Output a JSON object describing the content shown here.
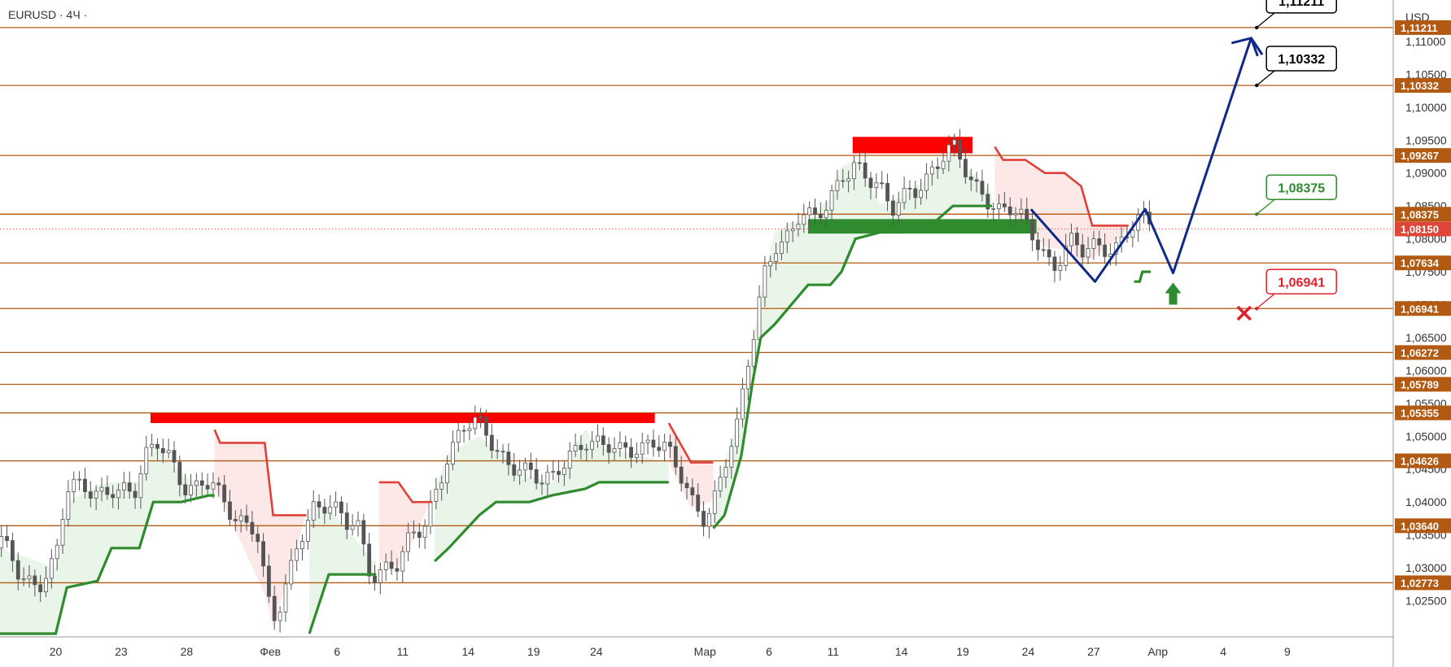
{
  "header": {
    "symbol": "EURUSD · 4Ч ·",
    "currency": "USD"
  },
  "colors": {
    "level": "#b35a12",
    "level_tag": "#b35a12",
    "current_tag": "#e0453a",
    "bull": "#2e8b2e",
    "bear": "#e0403a",
    "resistance": "#ff0000",
    "support_zone": "#2e8b2e",
    "forecast": "#0d2a8a",
    "candle": "#555555",
    "up_fill": "#e9f5e9",
    "down_fill": "#fde8e8"
  },
  "chart_data": {
    "type": "candlestick",
    "y_range": [
      1.0195,
      1.1163
    ],
    "x_range": [
      0,
      1000
    ],
    "y_ticks": [
      "1,11000",
      "1,10500",
      "1,10000",
      "1,09500",
      "1,09000",
      "1,08500",
      "1,08000",
      "1,07500",
      "1,07000",
      "1,06500",
      "1,06000",
      "1,05500",
      "1,05000",
      "1,04500",
      "1,04000",
      "1,03500",
      "1,03000",
      "1,02500"
    ],
    "y_tick_values": [
      1.11,
      1.105,
      1.1,
      1.095,
      1.09,
      1.085,
      1.08,
      1.075,
      1.07,
      1.065,
      1.06,
      1.055,
      1.05,
      1.045,
      1.04,
      1.035,
      1.03,
      1.025
    ],
    "x_ticks": [
      {
        "label": "20",
        "x": 40
      },
      {
        "label": "23",
        "x": 87
      },
      {
        "label": "28",
        "x": 134
      },
      {
        "label": "Фев",
        "x": 194
      },
      {
        "label": "6",
        "x": 242
      },
      {
        "label": "11",
        "x": 289
      },
      {
        "label": "14",
        "x": 336
      },
      {
        "label": "19",
        "x": 383
      },
      {
        "label": "24",
        "x": 428
      },
      {
        "label": "Мар",
        "x": 506
      },
      {
        "label": "6",
        "x": 552
      },
      {
        "label": "11",
        "x": 598
      },
      {
        "label": "14",
        "x": 647
      },
      {
        "label": "19",
        "x": 691
      },
      {
        "label": "24",
        "x": 738
      },
      {
        "label": "27",
        "x": 785
      },
      {
        "label": "Апр",
        "x": 831
      },
      {
        "label": "4",
        "x": 878
      },
      {
        "label": "9",
        "x": 924
      }
    ],
    "levels": [
      {
        "value": 1.11211,
        "label": "1,11211"
      },
      {
        "value": 1.10332,
        "label": "1,10332"
      },
      {
        "value": 1.09267,
        "label": "1,09267"
      },
      {
        "value": 1.08375,
        "label": "1,08375"
      },
      {
        "value": 1.07634,
        "label": "1,07634"
      },
      {
        "value": 1.06941,
        "label": "1,06941"
      },
      {
        "value": 1.06272,
        "label": "1,06272"
      },
      {
        "value": 1.05789,
        "label": "1,05789"
      },
      {
        "value": 1.05355,
        "label": "1,05355"
      },
      {
        "value": 1.04626,
        "label": "1,04626"
      },
      {
        "value": 1.0364,
        "label": "1,03640"
      },
      {
        "value": 1.02773,
        "label": "1,02773"
      }
    ],
    "current_price": {
      "value": 1.0815,
      "label": "1,08150"
    },
    "price_path": [
      [
        0,
        1.033
      ],
      [
        14,
        1.029
      ],
      [
        28,
        1.028
      ],
      [
        40,
        1.03
      ],
      [
        48,
        1.04
      ],
      [
        62,
        1.042
      ],
      [
        80,
        1.043
      ],
      [
        96,
        1.04
      ],
      [
        105,
        1.047
      ],
      [
        114,
        1.051
      ],
      [
        122,
        1.049
      ],
      [
        132,
        1.043
      ],
      [
        140,
        1.041
      ],
      [
        152,
        1.042
      ],
      [
        162,
        1.04
      ],
      [
        172,
        1.038
      ],
      [
        184,
        1.035
      ],
      [
        192,
        1.023
      ],
      [
        198,
        1.02
      ],
      [
        206,
        1.027
      ],
      [
        214,
        1.035
      ],
      [
        224,
        1.04
      ],
      [
        236,
        1.039
      ],
      [
        248,
        1.036
      ],
      [
        256,
        1.038
      ],
      [
        266,
        1.031
      ],
      [
        276,
        1.031
      ],
      [
        286,
        1.03
      ],
      [
        296,
        1.034
      ],
      [
        304,
        1.036
      ],
      [
        312,
        1.042
      ],
      [
        320,
        1.047
      ],
      [
        332,
        1.05
      ],
      [
        344,
        1.05
      ],
      [
        356,
        1.048
      ],
      [
        372,
        1.046
      ],
      [
        388,
        1.042
      ],
      [
        396,
        1.043
      ],
      [
        408,
        1.049
      ],
      [
        420,
        1.051
      ],
      [
        432,
        1.048
      ],
      [
        444,
        1.047
      ],
      [
        456,
        1.049
      ],
      [
        468,
        1.05
      ],
      [
        478,
        1.047
      ],
      [
        486,
        1.043
      ],
      [
        496,
        1.039
      ],
      [
        506,
        1.038
      ],
      [
        512,
        1.041
      ],
      [
        520,
        1.046
      ],
      [
        530,
        1.051
      ],
      [
        536,
        1.059
      ],
      [
        542,
        1.066
      ],
      [
        548,
        1.075
      ],
      [
        556,
        1.081
      ],
      [
        566,
        1.082
      ],
      [
        574,
        1.084
      ],
      [
        584,
        1.082
      ],
      [
        594,
        1.085
      ],
      [
        604,
        1.091
      ],
      [
        614,
        1.092
      ],
      [
        626,
        1.087
      ],
      [
        640,
        1.083
      ],
      [
        652,
        1.088
      ],
      [
        664,
        1.089
      ],
      [
        676,
        1.091
      ],
      [
        686,
        1.093
      ],
      [
        696,
        1.09
      ],
      [
        706,
        1.089
      ],
      [
        716,
        1.085
      ],
      [
        726,
        1.084
      ],
      [
        736,
        1.082
      ],
      [
        746,
        1.08
      ],
      [
        756,
        1.077
      ],
      [
        768,
        1.079
      ],
      [
        778,
        1.076
      ],
      [
        790,
        1.078
      ],
      [
        800,
        1.079
      ],
      [
        810,
        1.082
      ],
      [
        818,
        1.082
      ],
      [
        826,
        1.081
      ]
    ],
    "stop_line_bull": [
      [
        0,
        1.02
      ],
      [
        40,
        1.02
      ],
      [
        48,
        1.027
      ],
      [
        70,
        1.028
      ],
      [
        80,
        1.033
      ],
      [
        100,
        1.033
      ],
      [
        110,
        1.04
      ],
      [
        130,
        1.04
      ],
      [
        150,
        1.041
      ],
      [
        154,
        1.041
      ]
    ],
    "stop_line_bull_2": [
      [
        222,
        1.02
      ],
      [
        236,
        1.029
      ],
      [
        268,
        1.029
      ],
      [
        270,
        1.029
      ]
    ],
    "stop_line_bull_3": [
      [
        312,
        1.031
      ],
      [
        322,
        1.033
      ],
      [
        344,
        1.038
      ],
      [
        356,
        1.04
      ],
      [
        380,
        1.04
      ],
      [
        396,
        1.041
      ],
      [
        420,
        1.042
      ],
      [
        430,
        1.043
      ],
      [
        480,
        1.043
      ]
    ],
    "stop_line_bull_4": [
      [
        512,
        1.036
      ],
      [
        520,
        1.038
      ],
      [
        532,
        1.047
      ],
      [
        540,
        1.058
      ],
      [
        546,
        1.065
      ],
      [
        556,
        1.067
      ],
      [
        568,
        1.07
      ],
      [
        580,
        1.073
      ],
      [
        596,
        1.073
      ],
      [
        604,
        1.075
      ],
      [
        614,
        1.08
      ],
      [
        632,
        1.081
      ],
      [
        648,
        1.081
      ],
      [
        668,
        1.082
      ],
      [
        684,
        1.085
      ],
      [
        700,
        1.085
      ],
      [
        712,
        1.085
      ]
    ],
    "stop_line_bull_5": [
      [
        814,
        1.0735
      ],
      [
        818,
        1.0735
      ],
      [
        820,
        1.075
      ],
      [
        826,
        1.075
      ]
    ],
    "stop_line_bear": [
      [
        154,
        1.051
      ],
      [
        158,
        1.049
      ],
      [
        190,
        1.049
      ],
      [
        196,
        1.038
      ],
      [
        218,
        1.038
      ],
      [
        220,
        1.038
      ]
    ],
    "stop_line_bear_2": [
      [
        272,
        1.043
      ],
      [
        286,
        1.043
      ],
      [
        296,
        1.04
      ],
      [
        310,
        1.04
      ]
    ],
    "stop_line_bear_3": [
      [
        480,
        1.052
      ],
      [
        496,
        1.046
      ],
      [
        510,
        1.046
      ],
      [
        512,
        1.046
      ]
    ],
    "stop_line_bear_4": [
      [
        714,
        1.094
      ],
      [
        720,
        1.092
      ],
      [
        736,
        1.092
      ],
      [
        750,
        1.09
      ],
      [
        764,
        1.09
      ],
      [
        776,
        1.088
      ],
      [
        784,
        1.082
      ],
      [
        806,
        1.082
      ],
      [
        810,
        1.082
      ]
    ],
    "resistance_zones": [
      {
        "x0": 108,
        "x1": 470,
        "y0": 1.052,
        "y1": 1.0535
      },
      {
        "x0": 612,
        "x1": 698,
        "y0": 1.093,
        "y1": 1.0955
      }
    ],
    "support_zone": {
      "x0": 580,
      "x1": 744,
      "y0": 1.0808,
      "y1": 1.083
    },
    "forecast_path": [
      [
        740,
        1.0845
      ],
      [
        786,
        1.0735
      ],
      [
        822,
        1.0845
      ],
      [
        842,
        1.0748
      ],
      [
        898,
        1.1105
      ],
      [
        906,
        1.108
      ]
    ],
    "buy_arrow": {
      "x": 842,
      "y": 1.07
    },
    "invalidation_x": {
      "x": 893,
      "y": 1.0687
    },
    "callouts": [
      {
        "text": "1,11211",
        "style": "black",
        "anchor_x": 902,
        "anchor_y": 1.11211
      },
      {
        "text": "1,10332",
        "style": "black",
        "anchor_x": 902,
        "anchor_y": 1.10332
      },
      {
        "text": "1,08375",
        "style": "green",
        "anchor_x": 902,
        "anchor_y": 1.08375
      },
      {
        "text": "1,06941",
        "style": "red",
        "anchor_x": 902,
        "anchor_y": 1.06941
      }
    ]
  }
}
